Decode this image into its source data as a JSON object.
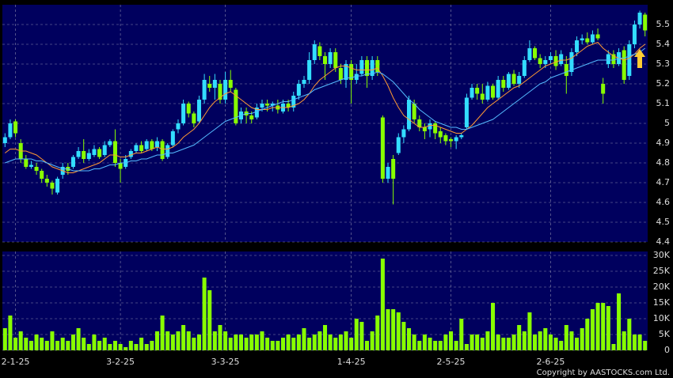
{
  "chart_data": [
    {
      "type": "candlestick",
      "categories": [
        null,
        null,
        "2-1-25",
        null,
        null,
        null,
        null,
        null,
        null,
        null,
        null,
        null,
        null,
        null,
        null,
        null,
        null,
        null,
        null,
        null,
        null,
        null,
        "3-2-25",
        null,
        null,
        null,
        null,
        null,
        null,
        null,
        null,
        null,
        null,
        null,
        null,
        null,
        null,
        null,
        null,
        null,
        null,
        null,
        "3-3-25",
        null,
        null,
        null,
        null,
        null,
        null,
        null,
        null,
        null,
        null,
        null,
        null,
        null,
        null,
        null,
        null,
        null,
        null,
        null,
        null,
        null,
        null,
        null,
        "1-4-25",
        null,
        null,
        null,
        null,
        null,
        null,
        null,
        null,
        null,
        null,
        null,
        null,
        null,
        null,
        null,
        null,
        null,
        null,
        "2-5-25",
        null,
        null,
        null,
        null,
        null,
        null,
        null,
        null,
        null,
        null,
        null,
        null,
        null,
        null,
        null,
        null,
        null,
        null,
        "2-6-25",
        null,
        null,
        null,
        null,
        null,
        null,
        null,
        null,
        null,
        null,
        null,
        null,
        null,
        null,
        null,
        null,
        null,
        null
      ],
      "open": [
        4.9,
        4.93,
        5.01,
        4.9,
        4.82,
        4.78,
        4.78,
        4.76,
        4.72,
        4.7,
        4.65,
        4.74,
        4.78,
        4.78,
        4.83,
        4.86,
        4.82,
        4.84,
        4.87,
        4.84,
        4.89,
        4.91,
        4.8,
        4.78,
        4.83,
        4.86,
        4.89,
        4.87,
        4.91,
        4.88,
        4.91,
        4.83,
        4.89,
        4.97,
        5.0,
        5.1,
        5.05,
        5.01,
        5.12,
        5.2,
        5.18,
        5.2,
        5.12,
        5.22,
        5.17,
        5.02,
        5.06,
        5.04,
        5.03,
        5.08,
        5.1,
        5.09,
        5.09,
        5.06,
        5.1,
        5.08,
        5.14,
        5.2,
        5.22,
        5.32,
        5.39,
        5.34,
        5.3,
        5.36,
        5.28,
        5.22,
        5.3,
        5.22,
        5.25,
        5.32,
        5.24,
        5.32,
        5.03,
        4.72,
        4.82,
        4.85,
        4.93,
        4.97,
        5.1,
        5.02,
        4.98,
        4.97,
        5.0,
        4.96,
        4.94,
        4.92,
        4.91,
        4.93,
        4.98,
        5.13,
        5.18,
        5.15,
        5.12,
        5.19,
        5.13,
        5.22,
        5.18,
        5.25,
        5.2,
        5.24,
        5.32,
        5.38,
        5.33,
        5.3,
        5.32,
        5.34,
        5.3,
        5.3,
        5.26,
        5.36,
        5.42,
        5.43,
        5.41,
        5.45,
        5.2,
        5.3,
        5.35,
        5.3,
        5.37,
        5.24,
        5.4,
        5.5,
        5.55
      ],
      "high": [
        4.95,
        5.02,
        5.02,
        4.92,
        4.84,
        4.81,
        4.8,
        4.77,
        4.74,
        4.71,
        4.73,
        4.8,
        4.8,
        4.84,
        4.88,
        4.92,
        4.87,
        4.89,
        4.88,
        4.91,
        4.92,
        4.97,
        4.82,
        4.84,
        4.87,
        4.9,
        4.91,
        4.92,
        4.92,
        4.93,
        4.92,
        4.9,
        4.97,
        5.02,
        5.12,
        5.11,
        5.06,
        5.14,
        5.25,
        5.24,
        5.25,
        5.22,
        5.26,
        5.27,
        5.18,
        5.08,
        5.08,
        5.06,
        5.1,
        5.12,
        5.12,
        5.11,
        5.12,
        5.12,
        5.12,
        5.16,
        5.22,
        5.24,
        5.36,
        5.42,
        5.41,
        5.36,
        5.38,
        5.38,
        5.3,
        5.32,
        5.32,
        5.3,
        5.34,
        5.34,
        5.34,
        5.34,
        5.04,
        4.8,
        4.84,
        4.95,
        4.99,
        5.14,
        5.12,
        5.04,
        5.0,
        5.02,
        5.01,
        4.98,
        4.95,
        4.93,
        4.94,
        4.95,
        5.15,
        5.2,
        5.2,
        5.2,
        5.21,
        5.2,
        5.24,
        5.24,
        5.26,
        5.27,
        5.26,
        5.34,
        5.42,
        5.39,
        5.35,
        5.34,
        5.36,
        5.37,
        5.37,
        5.34,
        5.38,
        5.44,
        5.45,
        5.46,
        5.47,
        5.48,
        5.23,
        5.37,
        5.37,
        5.38,
        5.39,
        5.42,
        5.52,
        5.57,
        5.56
      ],
      "low": [
        4.88,
        4.92,
        4.93,
        4.8,
        4.77,
        4.77,
        4.74,
        4.7,
        4.68,
        4.64,
        4.64,
        4.72,
        4.74,
        4.77,
        4.82,
        4.8,
        4.81,
        4.83,
        4.82,
        4.83,
        4.88,
        4.78,
        4.7,
        4.77,
        4.82,
        4.85,
        4.85,
        4.86,
        4.86,
        4.86,
        4.81,
        4.82,
        4.88,
        4.95,
        4.99,
        5.03,
        4.98,
        5.0,
        5.1,
        5.16,
        5.12,
        5.1,
        5.1,
        5.16,
        4.99,
        5.0,
        5.0,
        5.0,
        5.02,
        5.06,
        5.06,
        5.06,
        5.05,
        5.05,
        5.06,
        5.06,
        5.12,
        5.18,
        5.2,
        5.3,
        5.32,
        5.22,
        5.28,
        5.26,
        5.2,
        5.18,
        5.1,
        5.2,
        5.24,
        5.18,
        5.22,
        5.24,
        4.7,
        4.7,
        4.59,
        4.84,
        4.9,
        4.96,
        5.0,
        4.96,
        4.92,
        4.93,
        4.92,
        4.9,
        4.89,
        4.88,
        4.87,
        4.92,
        4.97,
        5.12,
        5.12,
        5.1,
        5.11,
        5.12,
        5.12,
        5.16,
        5.17,
        5.19,
        5.18,
        5.23,
        5.31,
        5.32,
        5.28,
        5.28,
        5.3,
        5.27,
        5.29,
        5.15,
        5.24,
        5.34,
        5.4,
        5.4,
        5.4,
        5.42,
        5.1,
        5.28,
        5.28,
        5.29,
        5.2,
        5.22,
        5.38,
        5.48,
        5.44
      ],
      "close": [
        4.93,
        5.0,
        4.95,
        4.82,
        4.78,
        4.79,
        4.76,
        4.72,
        4.7,
        4.67,
        4.72,
        4.78,
        4.76,
        4.83,
        4.86,
        4.82,
        4.85,
        4.87,
        4.83,
        4.89,
        4.91,
        4.8,
        4.77,
        4.82,
        4.86,
        4.89,
        4.86,
        4.91,
        4.87,
        4.91,
        4.82,
        4.89,
        4.96,
        5.0,
        5.1,
        5.05,
        5.0,
        5.12,
        5.22,
        5.18,
        5.22,
        5.12,
        5.22,
        5.18,
        5.0,
        5.06,
        5.04,
        5.02,
        5.08,
        5.1,
        5.09,
        5.1,
        5.07,
        5.1,
        5.08,
        5.14,
        5.2,
        5.22,
        5.32,
        5.4,
        5.34,
        5.3,
        5.36,
        5.28,
        5.22,
        5.3,
        5.22,
        5.25,
        5.32,
        5.24,
        5.32,
        5.26,
        4.72,
        4.78,
        4.72,
        4.93,
        4.97,
        5.12,
        5.02,
        4.98,
        4.96,
        5.0,
        4.95,
        4.93,
        4.91,
        4.91,
        4.93,
        4.94,
        5.13,
        5.18,
        5.15,
        5.12,
        5.19,
        5.13,
        5.22,
        5.18,
        5.25,
        5.2,
        5.24,
        5.32,
        5.38,
        5.33,
        5.3,
        5.32,
        5.34,
        5.29,
        5.35,
        5.24,
        5.36,
        5.42,
        5.43,
        5.41,
        5.45,
        5.43,
        5.15,
        5.35,
        5.3,
        5.36,
        5.22,
        5.4,
        5.5,
        5.56,
        5.47
      ],
      "up_color": "#33ddff",
      "down_color": "#88ff00",
      "lines": [
        {
          "color": "#ff9933",
          "values": [
            4.85,
            4.87,
            4.87,
            4.86,
            4.86,
            4.85,
            4.84,
            4.82,
            4.8,
            4.78,
            4.77,
            4.76,
            4.75,
            4.75,
            4.76,
            4.77,
            4.78,
            4.79,
            4.8,
            4.82,
            4.84,
            4.84,
            4.83,
            4.83,
            4.84,
            4.85,
            4.85,
            4.86,
            4.87,
            4.88,
            4.87,
            4.87,
            4.88,
            4.9,
            4.93,
            4.95,
            4.97,
            5.0,
            5.04,
            5.08,
            5.11,
            5.13,
            5.15,
            5.16,
            5.14,
            5.12,
            5.1,
            5.08,
            5.07,
            5.07,
            5.07,
            5.08,
            5.08,
            5.08,
            5.08,
            5.09,
            5.1,
            5.12,
            5.15,
            5.19,
            5.22,
            5.24,
            5.26,
            5.28,
            5.29,
            5.29,
            5.28,
            5.27,
            5.27,
            5.27,
            5.27,
            5.28,
            5.24,
            5.19,
            5.13,
            5.08,
            5.04,
            5.02,
            5.0,
            4.98,
            4.98,
            4.99,
            4.99,
            4.98,
            4.97,
            4.96,
            4.95,
            4.95,
            4.97,
            4.99,
            5.02,
            5.05,
            5.08,
            5.1,
            5.12,
            5.14,
            5.16,
            5.18,
            5.19,
            5.21,
            5.23,
            5.25,
            5.27,
            5.29,
            5.3,
            5.31,
            5.32,
            5.32,
            5.33,
            5.35,
            5.37,
            5.39,
            5.4,
            5.41,
            5.38,
            5.36,
            5.34,
            5.33,
            5.32,
            5.33,
            5.35,
            5.38,
            5.4
          ]
        },
        {
          "color": "#55bbff",
          "values": [
            4.8,
            4.81,
            4.82,
            4.82,
            4.82,
            4.82,
            4.81,
            4.81,
            4.8,
            4.79,
            4.78,
            4.77,
            4.77,
            4.76,
            4.76,
            4.76,
            4.76,
            4.77,
            4.77,
            4.78,
            4.79,
            4.79,
            4.8,
            4.8,
            4.81,
            4.81,
            4.82,
            4.82,
            4.83,
            4.84,
            4.84,
            4.85,
            4.85,
            4.86,
            4.87,
            4.88,
            4.89,
            4.91,
            4.93,
            4.95,
            4.97,
            4.99,
            5.01,
            5.02,
            5.03,
            5.04,
            5.05,
            5.05,
            5.06,
            5.07,
            5.08,
            5.09,
            5.1,
            5.11,
            5.11,
            5.12,
            5.13,
            5.14,
            5.15,
            5.17,
            5.18,
            5.19,
            5.2,
            5.21,
            5.22,
            5.23,
            5.23,
            5.24,
            5.24,
            5.25,
            5.25,
            5.26,
            5.25,
            5.23,
            5.21,
            5.18,
            5.15,
            5.12,
            5.1,
            5.07,
            5.05,
            5.03,
            5.01,
            5.0,
            4.99,
            4.98,
            4.98,
            4.97,
            4.97,
            4.98,
            4.99,
            5.0,
            5.01,
            5.02,
            5.04,
            5.06,
            5.08,
            5.1,
            5.12,
            5.14,
            5.16,
            5.18,
            5.2,
            5.21,
            5.23,
            5.24,
            5.25,
            5.26,
            5.27,
            5.28,
            5.29,
            5.3,
            5.31,
            5.32,
            5.32,
            5.32,
            5.32,
            5.33,
            5.33,
            5.34,
            5.35,
            5.36,
            5.38
          ]
        }
      ],
      "ylim": [
        4.4,
        5.6
      ],
      "yticks": [
        4.4,
        4.5,
        4.6,
        4.7,
        4.8,
        4.9,
        5,
        5.1,
        5.2,
        5.3,
        5.4,
        5.5
      ],
      "grid": true
    },
    {
      "type": "bar",
      "values": [
        7000,
        11000,
        4000,
        6000,
        4000,
        3000,
        5000,
        4000,
        3000,
        6000,
        3000,
        4000,
        3000,
        5000,
        7000,
        4000,
        2000,
        5000,
        3000,
        4000,
        2000,
        3000,
        2000,
        1000,
        3000,
        2000,
        4000,
        2000,
        3000,
        6000,
        11000,
        6000,
        5000,
        6000,
        8000,
        6000,
        4000,
        5000,
        23000,
        19000,
        6000,
        8000,
        6000,
        4000,
        5000,
        5000,
        4000,
        5000,
        5000,
        6000,
        4000,
        3000,
        3000,
        4000,
        5000,
        4000,
        5000,
        7000,
        4000,
        5000,
        6000,
        8000,
        5000,
        4000,
        5000,
        6000,
        4000,
        10000,
        9000,
        3000,
        6000,
        11000,
        29000,
        13000,
        13000,
        12000,
        9000,
        7000,
        5000,
        3000,
        5000,
        4000,
        3000,
        3000,
        5000,
        6000,
        3000,
        10000,
        2000,
        5000,
        5000,
        4000,
        6000,
        15000,
        5000,
        4000,
        4000,
        5000,
        8000,
        6000,
        12000,
        5000,
        6000,
        7000,
        5000,
        4000,
        3000,
        8000,
        6000,
        4000,
        7000,
        10000,
        13000,
        15000,
        15000,
        14000,
        2000,
        18000,
        6000,
        10000,
        5000,
        5000,
        3000
      ],
      "color": "#88ff00",
      "ylim": [
        0,
        31250
      ],
      "yticks": [
        0,
        {
          "value": 5000,
          "label": "5K"
        },
        {
          "value": 10000,
          "label": "10K"
        },
        {
          "value": 15000,
          "label": "15K"
        },
        {
          "value": 20000,
          "label": "20K"
        },
        {
          "value": 25000,
          "label": "25K"
        },
        {
          "value": 30000,
          "label": "30K"
        }
      ],
      "grid": true
    }
  ],
  "copyright": "Copyright by AASTOCKS.com Ltd."
}
